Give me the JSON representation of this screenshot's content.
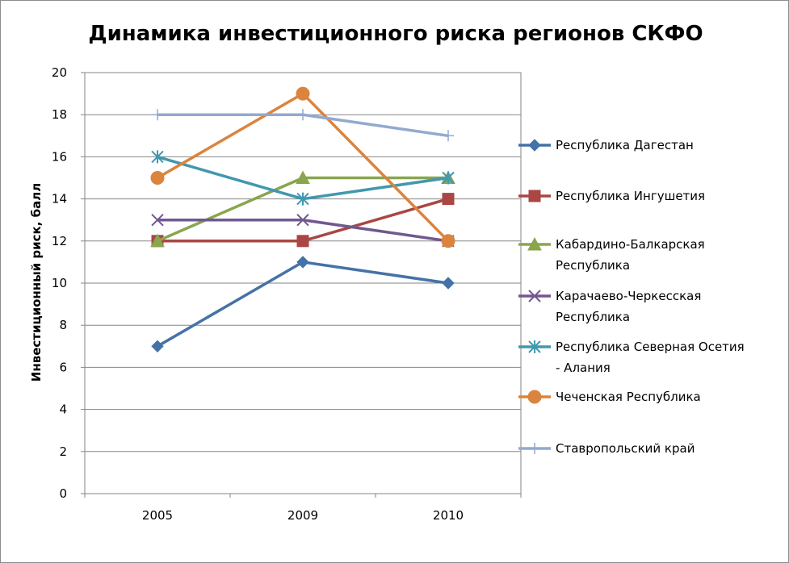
{
  "chart_data": {
    "type": "line",
    "title": "Динамика инвестиционного риска регионов СКФО",
    "xlabel": "",
    "ylabel": "Инвестиционный риск, балл",
    "categories": [
      "2005",
      "2009",
      "2010"
    ],
    "ylim": [
      0,
      20
    ],
    "yticks": [
      0,
      2,
      4,
      6,
      8,
      10,
      12,
      14,
      16,
      18,
      20
    ],
    "grid": "horizontal",
    "legend_position": "right",
    "series": [
      {
        "name": "Республика Дагестан",
        "values": [
          7,
          11,
          10
        ],
        "color": "#4572A7",
        "marker": "diamond"
      },
      {
        "name": "Республика Ингушетия",
        "values": [
          12,
          12,
          14
        ],
        "color": "#AA4643",
        "marker": "square"
      },
      {
        "name": "Кабардино-Балкарская Республика",
        "values": [
          12,
          15,
          15
        ],
        "color": "#89A54E",
        "marker": "triangle"
      },
      {
        "name": "Карачаево-Черкесская Республика",
        "values": [
          13,
          13,
          12
        ],
        "color": "#71588F",
        "marker": "x"
      },
      {
        "name": "Республика Северная Осетия - Алания",
        "values": [
          16,
          14,
          15
        ],
        "color": "#4198AF",
        "marker": "asterisk"
      },
      {
        "name": "Чеченская Республика",
        "values": [
          15,
          19,
          12
        ],
        "color": "#DB843D",
        "marker": "circle"
      },
      {
        "name": "Ставропольский край",
        "values": [
          18,
          18,
          17
        ],
        "color": "#93A9CF",
        "marker": "plus"
      }
    ]
  }
}
